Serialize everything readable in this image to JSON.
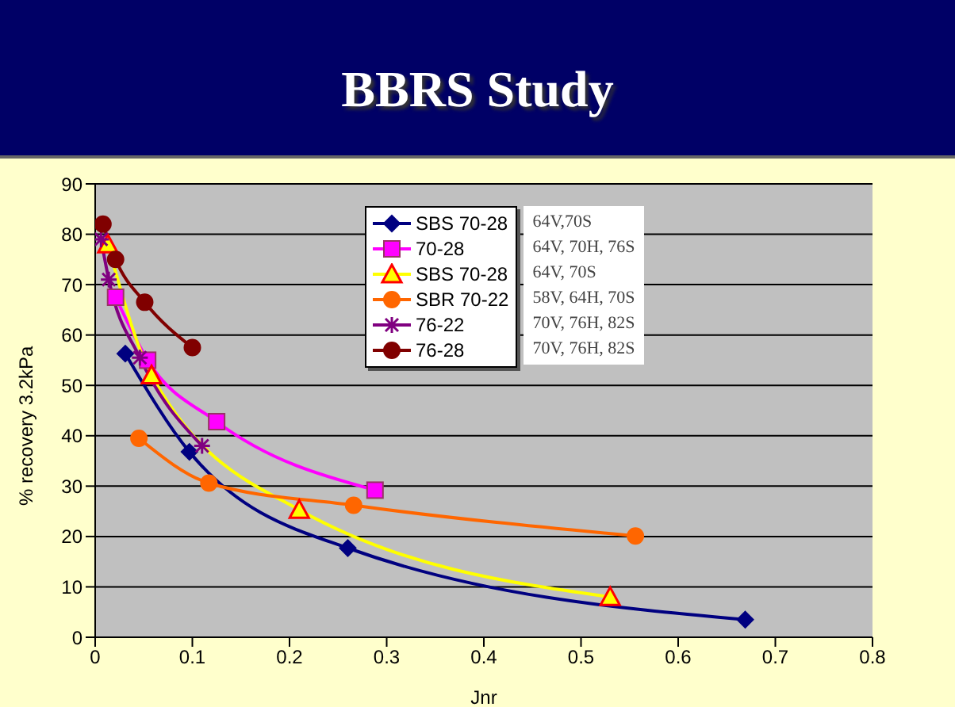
{
  "chart_data": {
    "type": "line",
    "title": "BBRS Study",
    "xlabel": "Jnr",
    "ylabel": "% recovery 3.2kPa",
    "xlim": [
      0,
      0.8
    ],
    "xticks": [
      0,
      0.1,
      0.2,
      0.3,
      0.4,
      0.5,
      0.6,
      0.7,
      0.8
    ],
    "ylim": [
      0,
      90
    ],
    "yticks": [
      0,
      10,
      20,
      30,
      40,
      50,
      60,
      70,
      80,
      90
    ],
    "grid": "y",
    "legend": "top",
    "series": [
      {
        "name": "SBS 70-28",
        "color": "#000080",
        "marker": "diamond",
        "x": [
          0.031,
          0.097,
          0.26,
          0.669
        ],
        "values": [
          56.3,
          36.8,
          17.7,
          3.5
        ]
      },
      {
        "name": "70-28",
        "color": "#ff00ff",
        "marker": "square",
        "x": [
          0.021,
          0.054,
          0.125,
          0.288
        ],
        "values": [
          67.5,
          55,
          42.8,
          29.2
        ]
      },
      {
        "name": "SBS 70-28",
        "color": "#ffff00",
        "marker": "triangle",
        "x": [
          0.013,
          0.058,
          0.21,
          0.53
        ],
        "values": [
          78,
          52,
          25.3,
          8
        ]
      },
      {
        "name": "SBR 70-22",
        "color": "#ff6600",
        "marker": "circle",
        "x": [
          0.045,
          0.117,
          0.266,
          0.556
        ],
        "values": [
          39.5,
          30.6,
          26.2,
          20.1
        ]
      },
      {
        "name": "76-22",
        "color": "#800080",
        "marker": "cross",
        "x": [
          0.006,
          0.014,
          0.046,
          0.11
        ],
        "values": [
          79,
          71,
          55.5,
          38
        ]
      },
      {
        "name": "76-28",
        "color": "#800000",
        "marker": "circle",
        "x": [
          0.008,
          0.021,
          0.051,
          0.1
        ],
        "values": [
          82,
          75,
          66.5,
          57.5
        ]
      }
    ],
    "annotations": [
      "64V,70S",
      "64V, 70H, 76S",
      "64V, 70S",
      "58V, 64H, 70S",
      "70V, 76H, 82S",
      "70V, 76H, 82S"
    ]
  }
}
